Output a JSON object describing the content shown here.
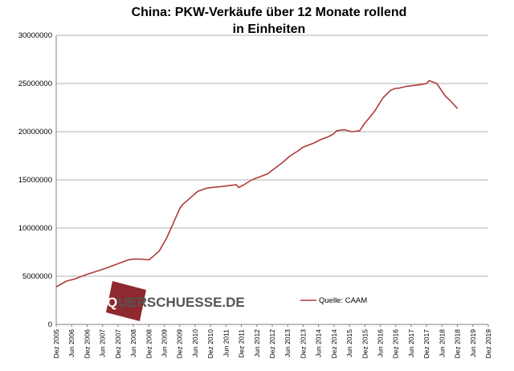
{
  "chart_data": {
    "type": "line",
    "title_line1": "China: PKW-Verkäufe  über 12 Monate rollend",
    "title_line2": "in Einheiten",
    "ylim": [
      0,
      30000000
    ],
    "yticks": [
      0,
      5000000,
      10000000,
      15000000,
      20000000,
      25000000,
      30000000
    ],
    "ytick_labels": [
      "0",
      "5000000",
      "10000000",
      "15000000",
      "20000000",
      "25000000",
      "30000000"
    ],
    "xlim": [
      2005.917,
      2019.917
    ],
    "x_tick_labels": [
      "Dez 2005",
      "Jun 2006",
      "Dez 2006",
      "Jun 2007",
      "Dez 2007",
      "Jun 2008",
      "Dez 2008",
      "Jun 2009",
      "Dez 2009",
      "Jun 2010",
      "Dez 2010",
      "Jun 2011",
      "Dez 2011",
      "Jun 2012",
      "Dez 2012",
      "Jun 2013",
      "Dez 2013",
      "Jun 2014",
      "Dez 2014",
      "Jun 2015",
      "Dez 2015",
      "Jun 2016",
      "Dez 2016",
      "Jun 2017",
      "Dez 2017",
      "Jun 2018",
      "Dez 2018",
      "Jun 2019",
      "Dez 2019"
    ],
    "grid": "horizontal",
    "legend_position": "right-lower",
    "series": [
      {
        "name": "Quelle: CAAM",
        "color": "#b03a3a",
        "x": [
          2005.917,
          2006.25,
          2006.5,
          2006.917,
          2007.5,
          2007.917,
          2008.25,
          2008.5,
          2008.75,
          2008.917,
          2009.0,
          2009.25,
          2009.5,
          2009.75,
          2009.917,
          2010.0,
          2010.25,
          2010.5,
          2010.75,
          2010.917,
          2011.25,
          2011.5,
          2011.75,
          2011.833,
          2012.0,
          2012.25,
          2012.5,
          2012.75,
          2012.917,
          2013.0,
          2013.25,
          2013.5,
          2013.75,
          2013.917,
          2014.25,
          2014.5,
          2014.75,
          2014.917,
          2015.0,
          2015.25,
          2015.5,
          2015.75,
          2015.917,
          2016.0,
          2016.25,
          2016.5,
          2016.75,
          2016.917,
          2017.0,
          2017.25,
          2017.5,
          2017.75,
          2017.917,
          2018.0,
          2018.25,
          2018.5,
          2018.75,
          2018.917
        ],
        "values": [
          3900000,
          4500000,
          4700000,
          5200000,
          5800000,
          6300000,
          6700000,
          6800000,
          6750000,
          6700000,
          6900000,
          7600000,
          9000000,
          10800000,
          12000000,
          12400000,
          13100000,
          13800000,
          14100000,
          14200000,
          14300000,
          14400000,
          14500000,
          14200000,
          14500000,
          15000000,
          15300000,
          15600000,
          16000000,
          16200000,
          16800000,
          17500000,
          18000000,
          18400000,
          18800000,
          19200000,
          19500000,
          19800000,
          20100000,
          20200000,
          20000000,
          20100000,
          20900000,
          21200000,
          22200000,
          23500000,
          24300000,
          24500000,
          24500000,
          24700000,
          24800000,
          24900000,
          25000000,
          25300000,
          25000000,
          23800000,
          23000000,
          22400000
        ]
      }
    ]
  },
  "legend": {
    "label": "Quelle: CAAM"
  },
  "logo": {
    "lead": "Q",
    "rest": "UERSCHUESSE.DE"
  },
  "colors": {
    "line": "#b03a3a",
    "logo_box": "#8e2a2f",
    "grid": "#b0b0b0",
    "axis": "#808080"
  }
}
